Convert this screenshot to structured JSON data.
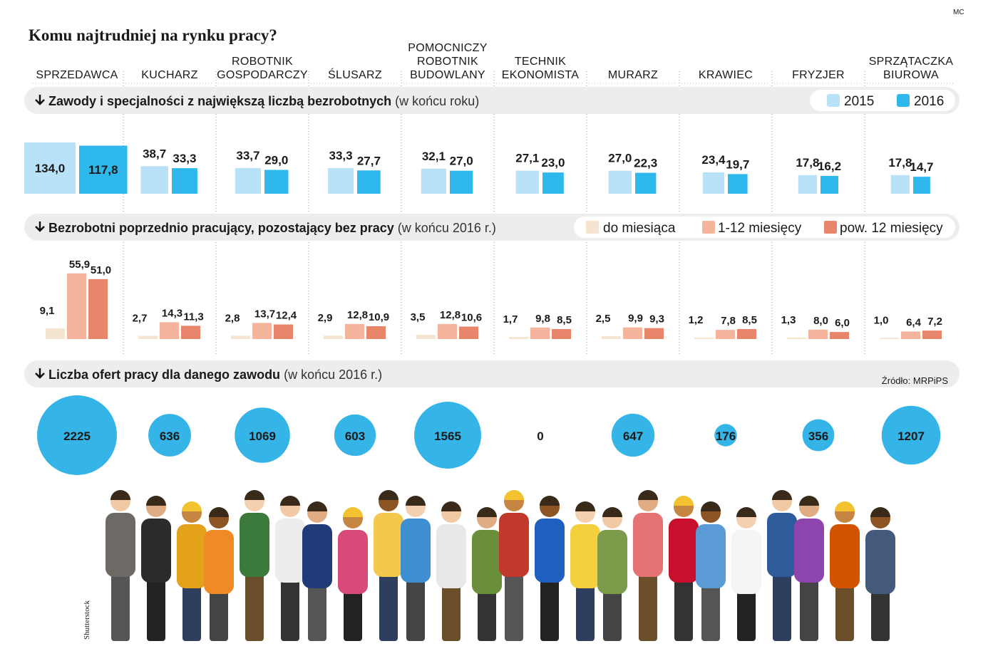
{
  "header": {
    "title": "Komu najtrudniej na rynku pracy?",
    "credit": "MC"
  },
  "professions": [
    [
      "SPRZEDAWCA"
    ],
    [
      "KUCHARZ"
    ],
    [
      "ROBOTNIK",
      "GOSPODARCZY"
    ],
    [
      "ŚLUSARZ"
    ],
    [
      "POMOCNICZY",
      "ROBOTNIK",
      "BUDOWLANY"
    ],
    [
      "TECHNIK",
      "EKONOMISTA"
    ],
    [
      "MURARZ"
    ],
    [
      "KRAWIEC"
    ],
    [
      "FRYZJER"
    ],
    [
      "SPRZĄTACZKA",
      "BIUROWA"
    ]
  ],
  "section_unemployed": {
    "title": "Zawody i specjalności  z największą liczbą bezrobotnych",
    "note": "(w końcu roku)",
    "series": [
      {
        "name": "2015",
        "color": "#b9e2f8",
        "values": [
          134.0,
          38.7,
          33.7,
          33.3,
          32.1,
          27.1,
          27.0,
          23.4,
          17.8,
          17.8
        ],
        "value_labels": [
          "134,0",
          "38,7",
          "33,7",
          "33,3",
          "32,1",
          "27,1",
          "27,0",
          "23,4",
          "17,8",
          "17,8"
        ]
      },
      {
        "name": "2016",
        "color": "#2eb8ec",
        "values": [
          117.8,
          33.3,
          29.0,
          27.7,
          27.0,
          23.0,
          22.3,
          19.7,
          16.2,
          14.7
        ],
        "value_labels": [
          "117,8",
          "33,3",
          "29,0",
          "27,7",
          "27,0",
          "23,0",
          "22,3",
          "19,7",
          "16,2",
          "14,7"
        ]
      }
    ]
  },
  "section_duration": {
    "title": "Bezrobotni poprzednio pracujący, pozostający bez pracy",
    "note": "(w końcu 2016 r.)",
    "series": [
      {
        "name": "do miesiąca",
        "color": "#f5e4d0",
        "values": [
          9.1,
          2.7,
          2.8,
          2.9,
          3.5,
          1.7,
          2.5,
          1.2,
          1.3,
          1.0
        ],
        "value_labels": [
          "9,1",
          "2,7",
          "2,8",
          "2,9",
          "3,5",
          "1,7",
          "2,5",
          "1,2",
          "1,3",
          "1,0"
        ]
      },
      {
        "name": "1-12 miesięcy",
        "color": "#f4b59c",
        "values": [
          55.9,
          14.3,
          13.7,
          12.8,
          12.8,
          9.8,
          9.9,
          7.8,
          8.0,
          6.4
        ],
        "value_labels": [
          "55,9",
          "14,3",
          "13,7",
          "12,8",
          "12,8",
          "9,8",
          "9,9",
          "7,8",
          "8,0",
          "6,4"
        ]
      },
      {
        "name": "pow. 12 miesięcy",
        "color": "#e8866b",
        "values": [
          51.0,
          11.3,
          12.4,
          10.9,
          10.6,
          8.5,
          9.3,
          8.5,
          6.0,
          7.2
        ],
        "value_labels": [
          "51,0",
          "11,3",
          "12,4",
          "10,9",
          "10,6",
          "8,5",
          "9,3",
          "8,5",
          "6,0",
          "7,2"
        ]
      }
    ]
  },
  "section_offers": {
    "title": "Liczba ofert pracy dla danego zawodu",
    "note": "(w końcu 2016 r.)",
    "source": "Źródło: MRPiPS",
    "color": "#35b4e8",
    "values": [
      2225,
      636,
      1069,
      603,
      1565,
      0,
      647,
      176,
      356,
      1207
    ]
  },
  "photo_credit": "Shutterstock"
}
